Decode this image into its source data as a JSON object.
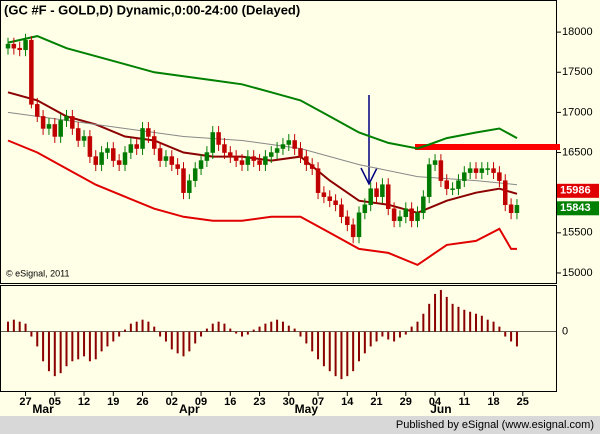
{
  "chart_data": [
    {
      "type": "candlestick",
      "title": "(GC #F - GOLD,D) Dynamic,0:00-24:00 (Delayed)",
      "credit": "© eSignal, 2011",
      "publisher": "Published by eSignal (www.esignal.com)",
      "months": [
        "Mar",
        "Apr",
        "May",
        "Jun"
      ],
      "categories": [
        null,
        null,
        null,
        "27",
        null,
        null,
        null,
        null,
        "05",
        null,
        null,
        null,
        null,
        "12",
        null,
        null,
        null,
        null,
        "19",
        null,
        null,
        null,
        null,
        "26",
        null,
        null,
        null,
        null,
        "02",
        null,
        null,
        null,
        null,
        "09",
        null,
        null,
        null,
        null,
        "16",
        null,
        null,
        null,
        null,
        "23",
        null,
        null,
        null,
        null,
        "30",
        null,
        null,
        null,
        null,
        "07",
        null,
        null,
        null,
        null,
        "14",
        null,
        null,
        null,
        null,
        "21",
        null,
        null,
        null,
        null,
        "29",
        null,
        null,
        null,
        null,
        "04",
        null,
        null,
        null,
        null,
        "11",
        null,
        null,
        null,
        null,
        "18",
        null,
        null,
        null,
        null,
        "25"
      ],
      "open": [
        17800,
        17850,
        17800,
        17780,
        17900,
        17100,
        16950,
        16800,
        16850,
        16700,
        16900,
        16950,
        16800,
        16650,
        16700,
        16450,
        16350,
        16500,
        16550,
        16400,
        16350,
        16500,
        16600,
        16550,
        16800,
        16700,
        16550,
        16400,
        16450,
        16350,
        16300,
        16000,
        16150,
        16300,
        16400,
        16500,
        16750,
        16600,
        16500,
        16450,
        16400,
        16350,
        16450,
        16400,
        16350,
        16450,
        16500,
        16550,
        16600,
        16650,
        16550,
        16450,
        16350,
        16300,
        16000,
        15950,
        15900,
        15850,
        15700,
        15600,
        15450,
        15750,
        15850,
        16050,
        15950,
        16100,
        15800,
        15650,
        15700,
        15800,
        15650,
        15750,
        15950,
        16350,
        16400,
        16150,
        16050,
        16050,
        16150,
        16250,
        16300,
        16250,
        16300,
        16300,
        16250,
        16150,
        15850,
        15750,
        null
      ],
      "high": [
        17930,
        17930,
        17880,
        17980,
        17950,
        17180,
        17030,
        16930,
        16930,
        16980,
        17030,
        17030,
        16880,
        16780,
        16780,
        16530,
        16580,
        16630,
        16630,
        16480,
        16580,
        16680,
        16680,
        16880,
        16880,
        16780,
        16630,
        16530,
        16530,
        16430,
        16380,
        16230,
        16380,
        16480,
        16580,
        16830,
        16830,
        16680,
        16580,
        16530,
        16480,
        16530,
        16530,
        16480,
        16530,
        16580,
        16630,
        16680,
        16730,
        16730,
        16630,
        16530,
        16430,
        16380,
        16080,
        16030,
        15980,
        15930,
        15780,
        15680,
        15830,
        15930,
        16130,
        16130,
        16180,
        16180,
        15880,
        15780,
        15880,
        15880,
        15830,
        16030,
        16430,
        16480,
        16480,
        16230,
        16130,
        16230,
        16330,
        16380,
        16380,
        16380,
        16380,
        16380,
        16330,
        16230,
        15930,
        15920,
        null
      ],
      "low": [
        17720,
        17720,
        17700,
        17700,
        17050,
        16880,
        16720,
        16720,
        16620,
        16620,
        16820,
        16720,
        16570,
        16570,
        16370,
        16270,
        16270,
        16420,
        16320,
        16270,
        16270,
        16420,
        16470,
        16470,
        16620,
        16470,
        16320,
        16320,
        16270,
        16220,
        15920,
        15920,
        16070,
        16220,
        16320,
        16420,
        16520,
        16420,
        16370,
        16320,
        16270,
        16270,
        16320,
        16270,
        16270,
        16370,
        16420,
        16470,
        16520,
        16470,
        16370,
        16270,
        16220,
        15920,
        15870,
        15820,
        15770,
        15620,
        15520,
        15370,
        15370,
        15670,
        15770,
        15870,
        15870,
        15720,
        15570,
        15570,
        15620,
        15570,
        15570,
        15670,
        15870,
        16270,
        16070,
        15970,
        15970,
        15970,
        16070,
        16170,
        16170,
        16170,
        16220,
        16170,
        16070,
        15770,
        15670,
        15670,
        null
      ],
      "close": [
        17850,
        17800,
        17780,
        17900,
        17100,
        16950,
        16800,
        16850,
        16700,
        16900,
        16950,
        16800,
        16650,
        16700,
        16450,
        16350,
        16500,
        16550,
        16400,
        16350,
        16500,
        16600,
        16550,
        16800,
        16700,
        16550,
        16400,
        16450,
        16350,
        16300,
        16000,
        16150,
        16300,
        16400,
        16500,
        16750,
        16600,
        16500,
        16450,
        16400,
        16350,
        16450,
        16400,
        16350,
        16450,
        16500,
        16550,
        16600,
        16650,
        16550,
        16450,
        16350,
        16300,
        16000,
        15950,
        15900,
        15850,
        15700,
        15600,
        15450,
        15750,
        15850,
        16050,
        15950,
        16100,
        15800,
        15650,
        15700,
        15800,
        15650,
        15750,
        15950,
        16350,
        16400,
        16150,
        16050,
        16050,
        16150,
        16250,
        16300,
        16250,
        16300,
        16300,
        16250,
        16150,
        15850,
        15750,
        15843,
        null
      ],
      "up_color": "#007a00",
      "down_color": "#c00000",
      "series": [
        {
          "color": "#008000",
          "x": [
            0,
            5,
            10,
            15,
            20,
            25,
            30,
            35,
            40,
            45,
            50,
            55,
            60,
            65,
            70,
            72,
            75,
            80,
            84,
            87
          ],
          "values": [
            17870,
            17950,
            17800,
            17700,
            17600,
            17500,
            17450,
            17400,
            17350,
            17250,
            17150,
            16950,
            16750,
            16620,
            16550,
            16600,
            16680,
            16750,
            16800,
            16680
          ]
        },
        {
          "color": "#8b0000",
          "x": [
            0,
            5,
            10,
            15,
            20,
            25,
            30,
            35,
            40,
            45,
            50,
            55,
            60,
            65,
            70,
            75,
            80,
            84,
            87
          ],
          "values": [
            17250,
            17150,
            16950,
            16850,
            16700,
            16650,
            16500,
            16450,
            16450,
            16400,
            16450,
            16150,
            15900,
            15850,
            15750,
            15900,
            16000,
            16050,
            15986
          ]
        },
        {
          "color": "#888888",
          "x": [
            0,
            10,
            20,
            30,
            40,
            50,
            60,
            70,
            80,
            87
          ],
          "values": [
            17000,
            16900,
            16800,
            16700,
            16650,
            16550,
            16350,
            16200,
            16150,
            16100
          ]
        },
        {
          "color": "#e00000",
          "x": [
            0,
            5,
            10,
            15,
            20,
            25,
            30,
            35,
            40,
            45,
            50,
            55,
            60,
            65,
            70,
            72,
            75,
            80,
            84,
            86,
            87
          ],
          "values": [
            16650,
            16500,
            16300,
            16100,
            15950,
            15800,
            15700,
            15650,
            15650,
            15700,
            15700,
            15500,
            15300,
            15250,
            15100,
            15200,
            15350,
            15400,
            15550,
            15300,
            15300
          ]
        }
      ],
      "ylim": [
        14875,
        18400
      ],
      "yticks": [
        15000,
        15500,
        16000,
        16500,
        17000,
        17500,
        18000
      ]
    },
    {
      "type": "bar",
      "color": "#8b0000",
      "values": [
        10,
        12,
        10,
        8,
        -5,
        -15,
        -30,
        -40,
        -45,
        -42,
        -35,
        -30,
        -28,
        -25,
        -30,
        -28,
        -20,
        -15,
        -10,
        -5,
        2,
        8,
        10,
        12,
        10,
        5,
        -5,
        -10,
        -18,
        -22,
        -25,
        -20,
        -12,
        -5,
        3,
        8,
        10,
        8,
        3,
        -2,
        -5,
        -3,
        2,
        5,
        8,
        10,
        12,
        10,
        6,
        3,
        -5,
        -12,
        -20,
        -28,
        -35,
        -40,
        -45,
        -48,
        -45,
        -40,
        -30,
        -22,
        -15,
        -10,
        -5,
        -8,
        -10,
        -6,
        -3,
        5,
        10,
        18,
        28,
        38,
        42,
        35,
        28,
        25,
        22,
        20,
        18,
        16,
        12,
        10,
        5,
        -5,
        -10,
        -15,
        null
      ],
      "ylim": [
        -61,
        46
      ],
      "yticks": [
        0
      ]
    }
  ]
}
